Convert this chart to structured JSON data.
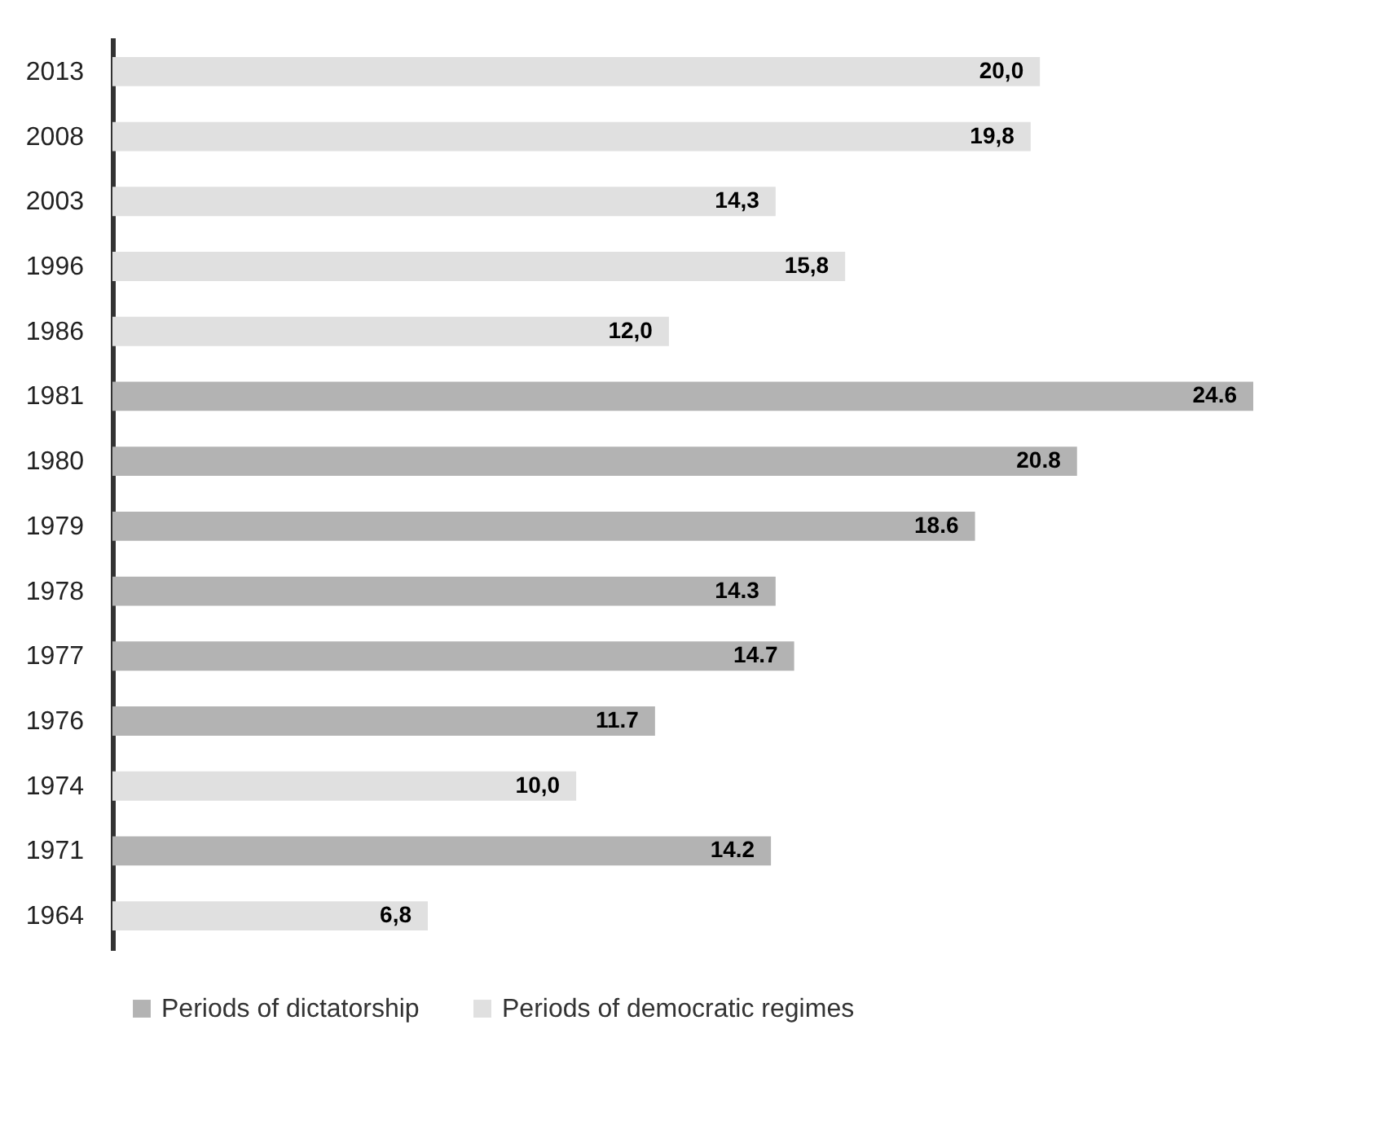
{
  "chart_data": {
    "type": "bar",
    "orientation": "horizontal",
    "categories": [
      "2013",
      "2008",
      "2003",
      "1996",
      "1986",
      "1981",
      "1980",
      "1979",
      "1978",
      "1977",
      "1976",
      "1974",
      "1971",
      "1964"
    ],
    "series": [
      {
        "name": "Periods of dictatorship",
        "color": "#b3b3b3",
        "values": [
          null,
          null,
          null,
          null,
          null,
          24.6,
          20.8,
          18.6,
          14.3,
          14.7,
          11.7,
          null,
          14.2,
          null
        ],
        "value_labels": [
          null,
          null,
          null,
          null,
          null,
          "24.6",
          "20.8",
          "18.6",
          "14.3",
          "14.7",
          "11.7",
          null,
          "14.2",
          null
        ]
      },
      {
        "name": "Periods of democratic regimes",
        "color": "#e0e0e0",
        "values": [
          20.0,
          19.8,
          14.3,
          15.8,
          12.0,
          null,
          null,
          null,
          null,
          null,
          null,
          10.0,
          null,
          6.8
        ],
        "value_labels": [
          "20,0",
          "19,8",
          "14,3",
          "15,8",
          "12,0",
          null,
          null,
          null,
          null,
          null,
          null,
          "10,0",
          null,
          "6,8"
        ]
      }
    ],
    "legend": "bottom"
  }
}
